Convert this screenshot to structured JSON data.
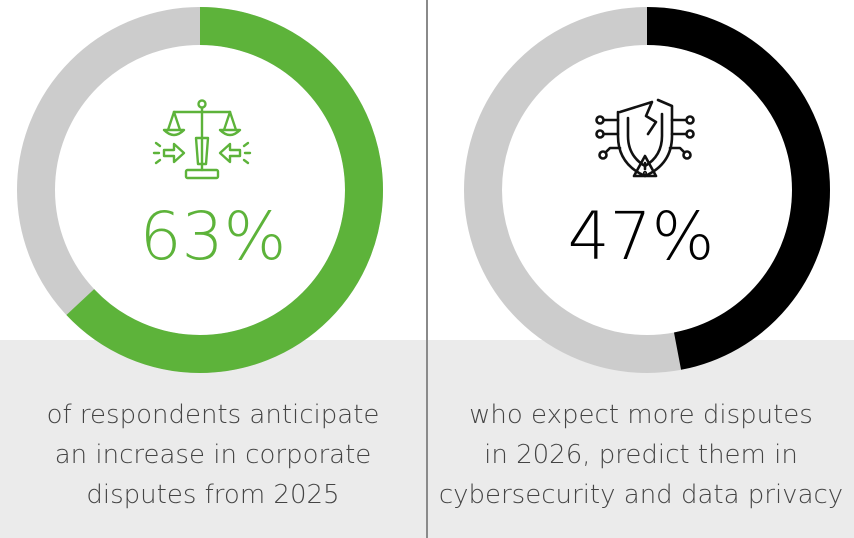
{
  "chart_data": [
    {
      "type": "pie",
      "variant": "donut",
      "values": [
        63,
        37
      ],
      "value_label": "63%",
      "caption_lines": [
        "of respondents anticipate",
        "an increase in corporate",
        "disputes from 2025"
      ],
      "colors": {
        "filled": "#5db33a",
        "remaining": "#cccccc",
        "text": "#5db33a"
      },
      "icon": "scales-of-justice-icon"
    },
    {
      "type": "pie",
      "variant": "donut",
      "values": [
        47,
        53
      ],
      "value_label": "47%",
      "caption_lines": [
        "who expect more disputes",
        "in 2026, predict them in",
        "cybersecurity and data privacy"
      ],
      "colors": {
        "filled": "#000000",
        "remaining": "#cccccc",
        "text": "#000000"
      },
      "icon": "broken-shield-warning-icon"
    }
  ]
}
